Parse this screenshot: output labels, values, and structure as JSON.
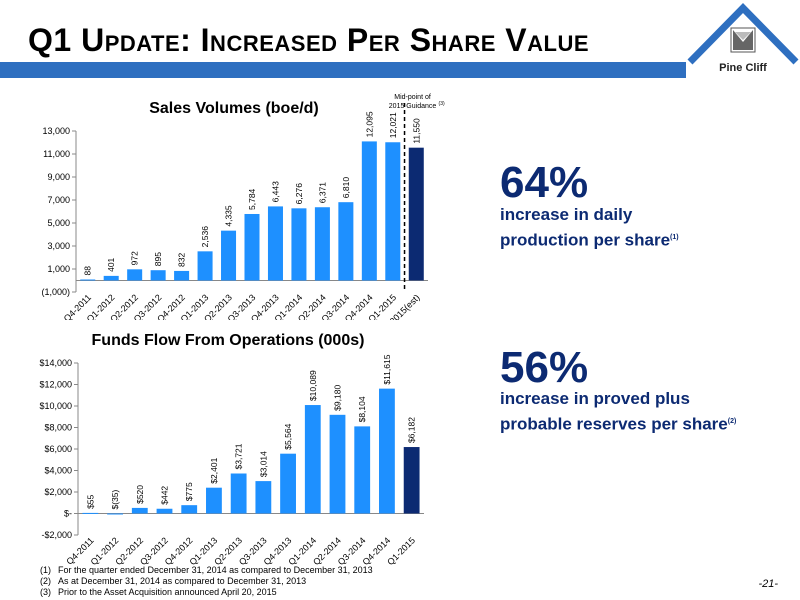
{
  "header": {
    "title": "Q1 Update: Increased Per Share Value",
    "logo_text": "Pine Cliff",
    "colors": {
      "band": "#2e6fc0",
      "bar": "#1e90ff",
      "highlight": "#0c2a72"
    }
  },
  "stats": [
    {
      "value": "64%",
      "line1": "increase in daily",
      "line2": "production per share",
      "note": "(1)"
    },
    {
      "value": "56%",
      "line1": "increase in proved plus",
      "line2": "probable reserves per share",
      "note": "(2)"
    }
  ],
  "chart_data": [
    {
      "type": "bar",
      "title": "Sales Volumes (boe/d)",
      "categories": [
        "Q4-2011",
        "Q1-2012",
        "Q2-2012",
        "Q3-2012",
        "Q4-2012",
        "Q1-2013",
        "Q2-2013",
        "Q3-2013",
        "Q4-2013",
        "Q1-2014",
        "Q2-2014",
        "Q3-2014",
        "Q4-2014",
        "Q1-2015",
        "2015(est)"
      ],
      "values": [
        88,
        401,
        972,
        895,
        832,
        2536,
        4335,
        5784,
        6443,
        6276,
        6371,
        6810,
        12095,
        12021,
        11550
      ],
      "value_labels": [
        "88",
        "401",
        "972",
        "895",
        "832",
        "2,536",
        "4,335",
        "5,784",
        "6,443",
        "6,276",
        "6,371",
        "6,810",
        "12,095",
        "12,021",
        "11,550"
      ],
      "highlight_index": 14,
      "ylim": [
        -1000,
        13000
      ],
      "yticks": [
        -1000,
        1000,
        3000,
        5000,
        7000,
        9000,
        11000,
        13000
      ],
      "ytick_labels": [
        "(1,000)",
        "1,000",
        "3,000",
        "5,000",
        "7,000",
        "9,000",
        "11,000",
        "13,000"
      ],
      "annotation": "Mid-point of 2015 Guidance",
      "annotation_note": "(3)",
      "grid": false
    },
    {
      "type": "bar",
      "title": "Funds Flow From Operations (000s)",
      "categories": [
        "Q4-2011",
        "Q1-2012",
        "Q2-2012",
        "Q3-2012",
        "Q4-2012",
        "Q1-2013",
        "Q2-2013",
        "Q3-2013",
        "Q4-2013",
        "Q1-2014",
        "Q2-2014",
        "Q3-2014",
        "Q4-2014",
        "Q1-2015"
      ],
      "values": [
        55,
        -35,
        520,
        442,
        775,
        2401,
        3721,
        3014,
        5564,
        10089,
        9180,
        8104,
        11615,
        6182
      ],
      "value_labels": [
        "$55",
        "$(35)",
        "$520",
        "$442",
        "$775",
        "$2,401",
        "$3,721",
        "$3,014",
        "$5,564",
        "$10,089",
        "$9,180",
        "$8,104",
        "$11,615",
        "$6,182"
      ],
      "highlight_index": 13,
      "ylim": [
        -2000,
        14000
      ],
      "yticks": [
        -2000,
        0,
        2000,
        4000,
        6000,
        8000,
        10000,
        12000,
        14000
      ],
      "ytick_labels": [
        "-$2,000",
        "$-",
        "$2,000",
        "$4,000",
        "$6,000",
        "$8,000",
        "$10,000",
        "$12,000",
        "$14,000"
      ],
      "grid": false
    }
  ],
  "footnotes": [
    {
      "num": "(1)",
      "text": "For the quarter ended December 31, 2014 as compared to December 31, 2013"
    },
    {
      "num": "(2)",
      "text": "As at December 31, 2014 as compared to December 31, 2013"
    },
    {
      "num": "(3)",
      "text": "Prior to the Asset Acquisition announced April 20, 2015"
    }
  ],
  "page_number": "-21-"
}
